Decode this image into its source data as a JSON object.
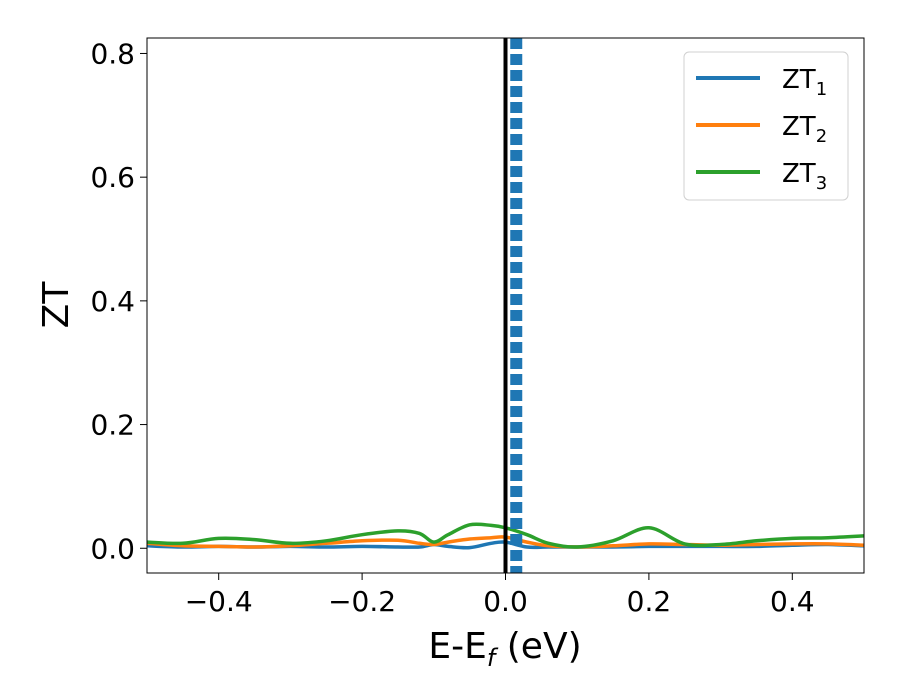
{
  "chart_data": {
    "type": "line",
    "xlabel": "E-E",
    "xlabel_sub": "f",
    "xlabel_unit": " (eV)",
    "ylabel": "ZT",
    "xlim": [
      -0.5,
      0.5
    ],
    "ylim": [
      -0.04,
      0.825
    ],
    "xticks": [
      -0.4,
      -0.2,
      0.0,
      0.2,
      0.4
    ],
    "xtick_labels": [
      "−0.4",
      "−0.2",
      "0.0",
      "0.2",
      "0.4"
    ],
    "yticks": [
      0.0,
      0.2,
      0.4,
      0.6,
      0.8
    ],
    "ytick_labels": [
      "0.0",
      "0.2",
      "0.4",
      "0.6",
      "0.8"
    ],
    "grid": false,
    "legend_position": "top-right",
    "reference_lines": [
      {
        "x": 0.0,
        "style": "solid",
        "color": "#000000"
      },
      {
        "x": 0.015,
        "style": "dashed",
        "color": "#1f77b4"
      }
    ],
    "x": [
      -0.5,
      -0.45,
      -0.4,
      -0.35,
      -0.3,
      -0.25,
      -0.2,
      -0.15,
      -0.12,
      -0.1,
      -0.08,
      -0.05,
      -0.02,
      0.0,
      0.03,
      0.06,
      0.1,
      0.15,
      0.2,
      0.25,
      0.3,
      0.35,
      0.4,
      0.45,
      0.5
    ],
    "series": [
      {
        "name": "ZT",
        "sub": "1",
        "color": "#1f77b4",
        "values": [
          0.004,
          0.002,
          0.003,
          0.002,
          0.003,
          0.002,
          0.003,
          0.002,
          0.002,
          0.006,
          0.003,
          0.001,
          0.008,
          0.01,
          0.002,
          0.002,
          0.002,
          0.002,
          0.003,
          0.003,
          0.003,
          0.003,
          0.005,
          0.006,
          0.004
        ]
      },
      {
        "name": "ZT",
        "sub": "2",
        "color": "#ff7f0e",
        "values": [
          0.008,
          0.004,
          0.003,
          0.002,
          0.004,
          0.008,
          0.012,
          0.013,
          0.008,
          0.006,
          0.01,
          0.015,
          0.017,
          0.018,
          0.01,
          0.004,
          0.002,
          0.004,
          0.007,
          0.006,
          0.005,
          0.006,
          0.007,
          0.007,
          0.005
        ]
      },
      {
        "name": "ZT",
        "sub": "3",
        "color": "#2ca02c",
        "values": [
          0.01,
          0.008,
          0.016,
          0.014,
          0.008,
          0.012,
          0.022,
          0.028,
          0.024,
          0.01,
          0.022,
          0.038,
          0.037,
          0.033,
          0.022,
          0.008,
          0.002,
          0.012,
          0.033,
          0.007,
          0.006,
          0.012,
          0.016,
          0.017,
          0.02
        ]
      }
    ]
  }
}
